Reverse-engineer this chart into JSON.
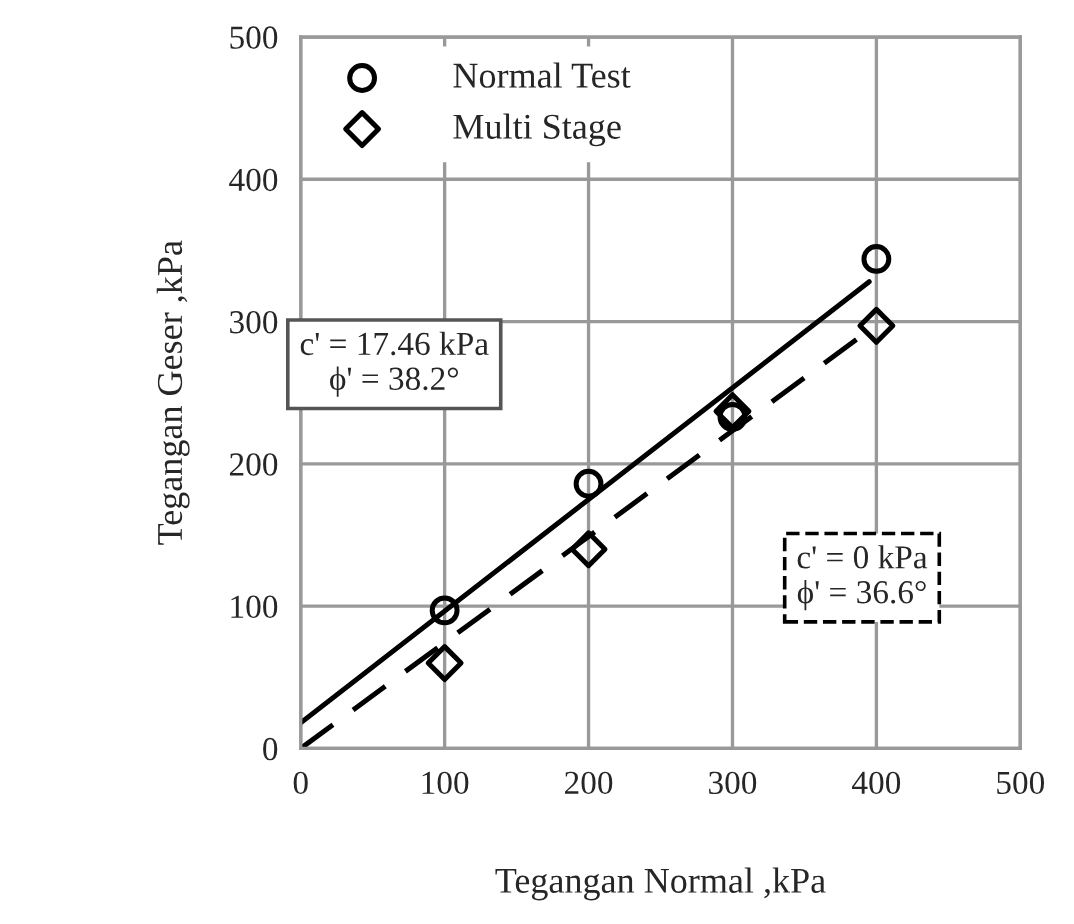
{
  "chart_data": {
    "type": "scatter",
    "xlabel": "Tegangan Normal ,kPa",
    "ylabel": "Tegangan Geser ,kPa",
    "xlim": [
      0,
      500
    ],
    "ylim": [
      0,
      500
    ],
    "xticks": [
      0,
      100,
      200,
      300,
      400,
      500
    ],
    "yticks": [
      0,
      100,
      200,
      300,
      400,
      500
    ],
    "grid": true,
    "legend": "top left",
    "series": [
      {
        "name": "Normal Test",
        "marker": "circle",
        "color": "#000000",
        "x": [
          100,
          200,
          300,
          400
        ],
        "values": [
          97,
          186,
          233,
          344
        ]
      },
      {
        "name": "Multi Stage",
        "marker": "diamond",
        "color": "#000000",
        "x": [
          100,
          200,
          300,
          400
        ],
        "values": [
          60,
          140,
          237,
          297
        ]
      },
      {
        "type": "line",
        "line_style": "solid",
        "marker": "none",
        "color": "#000000",
        "x": [
          0,
          395
        ],
        "values": [
          18,
          328
        ]
      },
      {
        "type": "line",
        "line_style": "dashed",
        "marker": "none",
        "color": "#000000",
        "x": [
          0,
          395
        ],
        "values": [
          0,
          294
        ]
      }
    ],
    "annotations": [
      "c' = 17.46 kPa\nϕ' = 38.2°",
      "c' = 0 kPa\nϕ' = 36.6°"
    ]
  }
}
